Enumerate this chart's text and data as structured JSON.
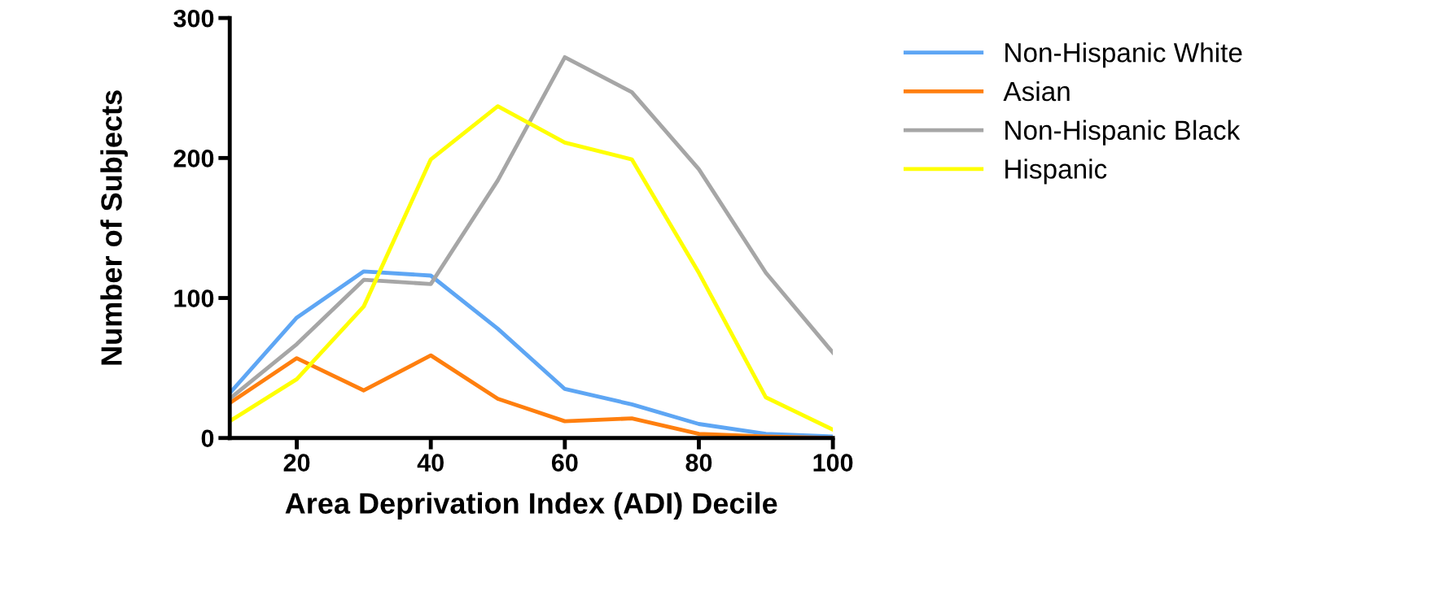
{
  "chart_data": {
    "type": "line",
    "xlabel": "Area Deprivation Index (ADI) Decile",
    "ylabel": "Number of Subjects",
    "x": [
      10,
      20,
      30,
      40,
      50,
      60,
      70,
      80,
      90,
      100
    ],
    "series": [
      {
        "name": "Non-Hispanic White",
        "color": "#5ea6f4",
        "values": [
          32,
          86,
          119,
          116,
          78,
          35,
          24,
          10,
          3,
          1
        ]
      },
      {
        "name": "Asian",
        "color": "#ff7f0e",
        "values": [
          25,
          57,
          34,
          59,
          28,
          12,
          14,
          3,
          1,
          0
        ]
      },
      {
        "name": "Non-Hispanic Black",
        "color": "#a6a6a6",
        "values": [
          28,
          67,
          113,
          110,
          184,
          272,
          247,
          192,
          118,
          61
        ]
      },
      {
        "name": "Hispanic",
        "color": "#ffff00",
        "values": [
          12,
          42,
          94,
          199,
          237,
          211,
          199,
          118,
          29,
          6
        ]
      }
    ],
    "xlim": [
      10,
      100
    ],
    "xticks": [
      20,
      40,
      60,
      80,
      100
    ],
    "ylim": [
      0,
      300
    ],
    "yticks": [
      0,
      100,
      200,
      300
    ],
    "grid": false,
    "legend": "top right",
    "marker": "none",
    "line_style": "solid"
  }
}
